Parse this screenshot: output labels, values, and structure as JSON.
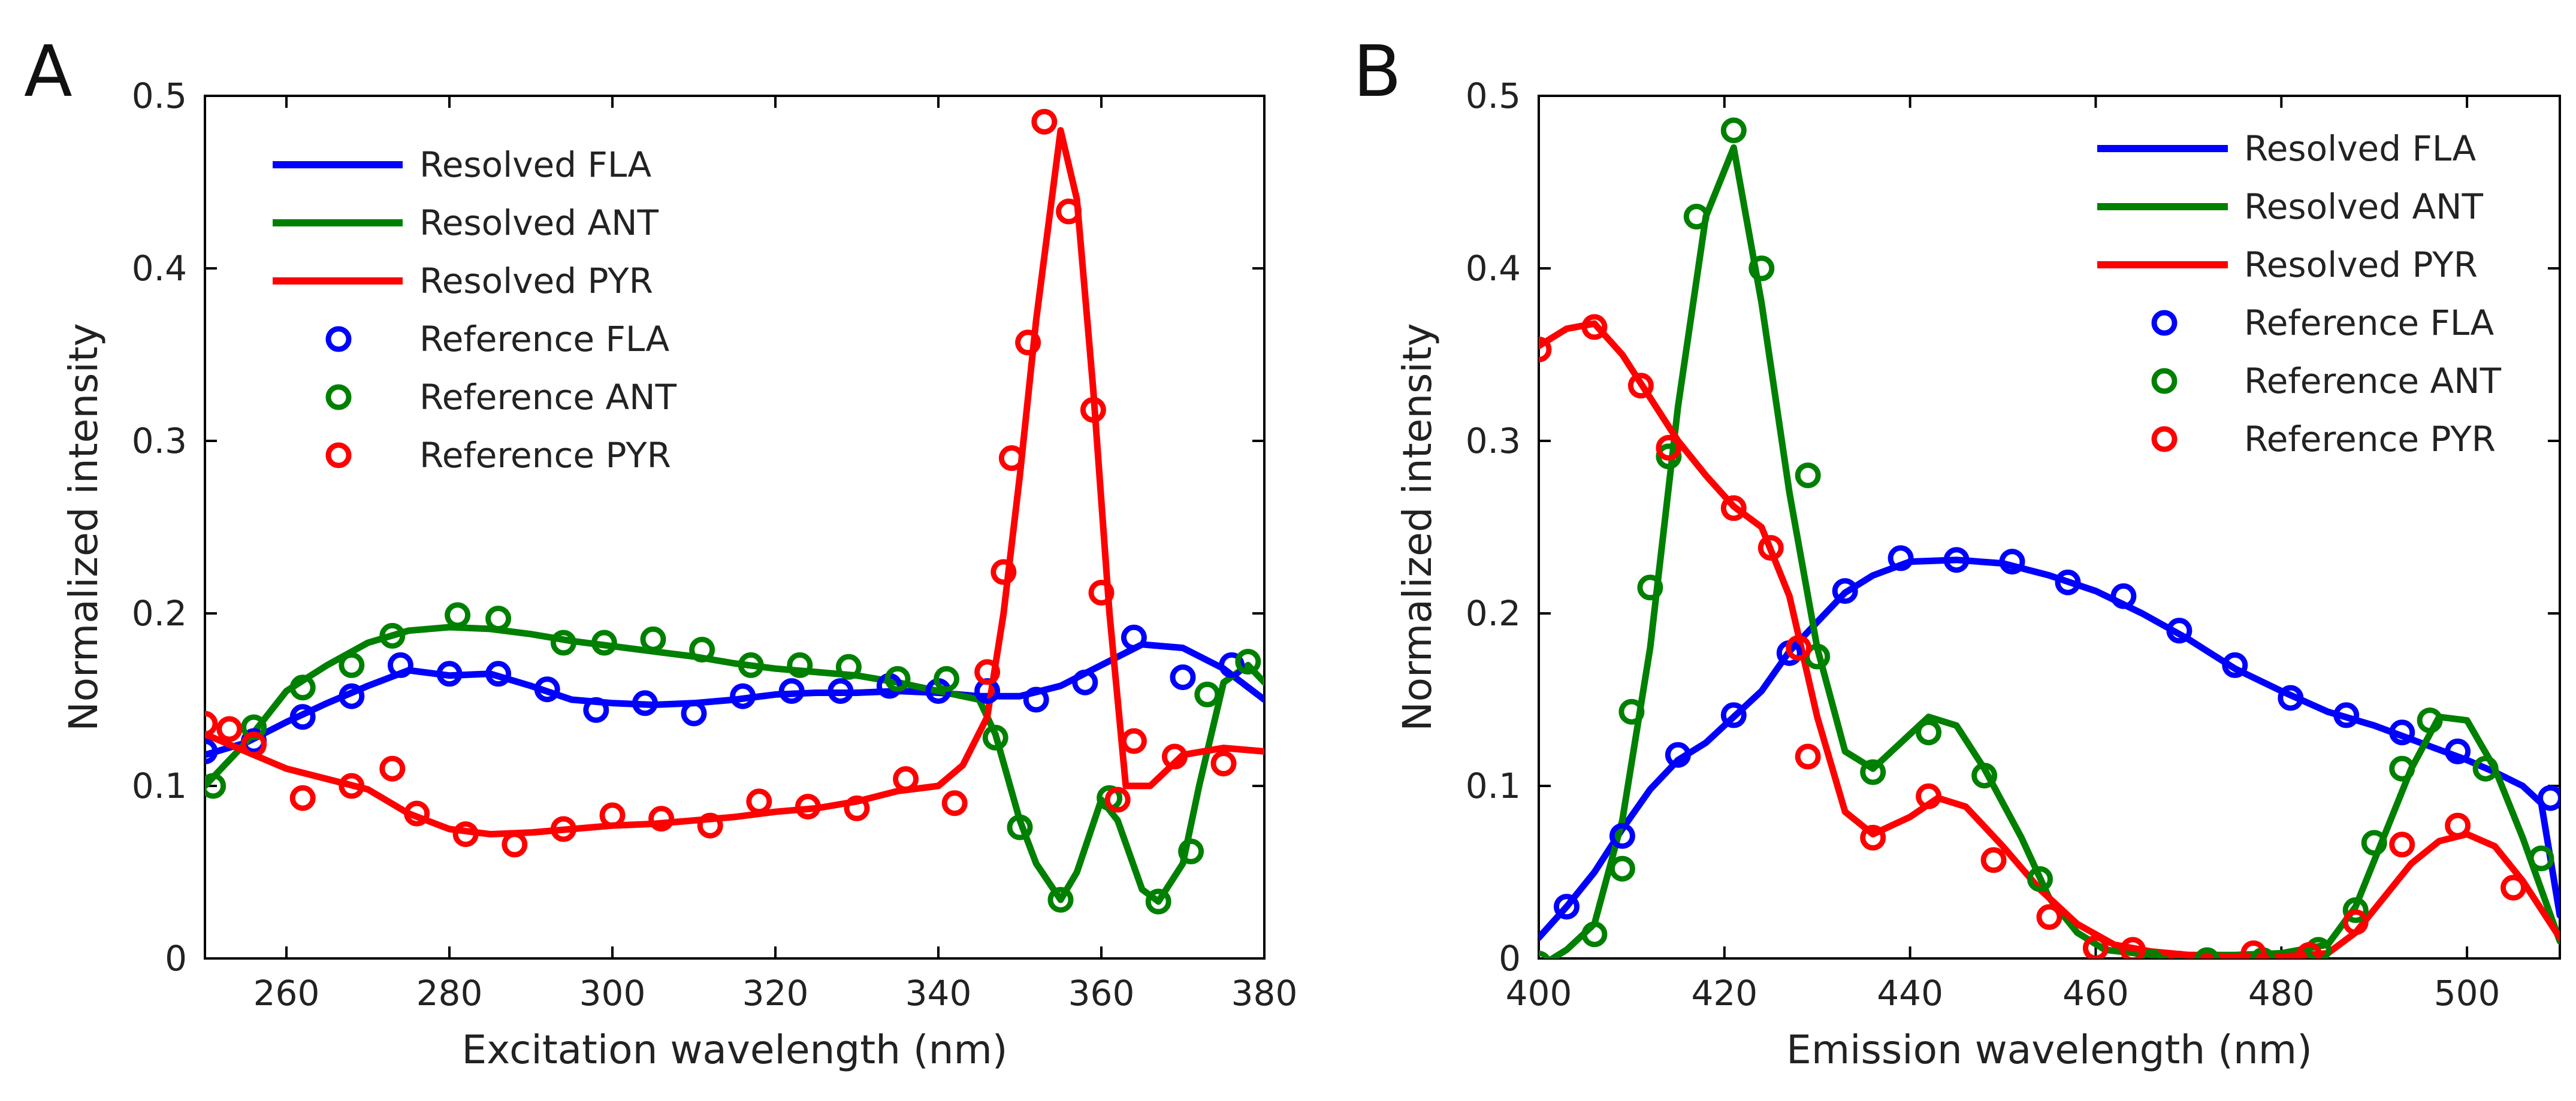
{
  "chart_data": [
    {
      "panel": "A",
      "type": "line",
      "xlabel": "Excitation wavelength (nm)",
      "ylabel": "Normalized intensity",
      "xlim": [
        250,
        380
      ],
      "ylim": [
        0,
        0.5
      ],
      "xticks": [
        260,
        280,
        300,
        320,
        340,
        360,
        380
      ],
      "yticks": [
        0,
        0.1,
        0.2,
        0.3,
        0.4,
        0.5
      ],
      "xtick_labels": [
        "260",
        "280",
        "300",
        "320",
        "340",
        "360",
        "380"
      ],
      "ytick_labels": [
        "0",
        "0.1",
        "0.2",
        "0.3",
        "0.4",
        "0.5"
      ],
      "legend_position": "top-left",
      "series": [
        {
          "name": "Resolved FLA",
          "kind": "line",
          "color": "#0000ff",
          "x": [
            250,
            255,
            260,
            265,
            270,
            275,
            280,
            285,
            290,
            295,
            300,
            305,
            310,
            315,
            320,
            325,
            330,
            335,
            340,
            345,
            350,
            355,
            360,
            365,
            370,
            375,
            380
          ],
          "y": [
            0.118,
            0.125,
            0.137,
            0.148,
            0.158,
            0.167,
            0.164,
            0.165,
            0.158,
            0.15,
            0.148,
            0.147,
            0.148,
            0.15,
            0.153,
            0.154,
            0.154,
            0.155,
            0.154,
            0.152,
            0.152,
            0.158,
            0.17,
            0.182,
            0.18,
            0.168,
            0.15
          ]
        },
        {
          "name": "Resolved ANT",
          "kind": "line",
          "color": "#008000",
          "x": [
            250,
            255,
            260,
            265,
            270,
            275,
            280,
            285,
            290,
            295,
            300,
            305,
            310,
            315,
            320,
            325,
            330,
            335,
            340,
            345,
            347,
            350,
            352,
            355,
            357,
            360,
            362,
            365,
            367,
            370,
            372,
            375,
            378,
            380
          ],
          "y": [
            0.1,
            0.125,
            0.155,
            0.17,
            0.183,
            0.19,
            0.192,
            0.191,
            0.188,
            0.184,
            0.181,
            0.178,
            0.175,
            0.171,
            0.168,
            0.166,
            0.164,
            0.16,
            0.155,
            0.15,
            0.13,
            0.08,
            0.055,
            0.034,
            0.05,
            0.092,
            0.08,
            0.04,
            0.033,
            0.055,
            0.1,
            0.16,
            0.17,
            0.16
          ]
        },
        {
          "name": "Resolved PYR",
          "kind": "line",
          "color": "#ff0000",
          "x": [
            250,
            255,
            260,
            265,
            270,
            275,
            280,
            285,
            290,
            295,
            300,
            305,
            310,
            315,
            320,
            325,
            330,
            335,
            340,
            343,
            346,
            348,
            350,
            352,
            355,
            357,
            359,
            361,
            363,
            366,
            370,
            375,
            380
          ],
          "y": [
            0.13,
            0.12,
            0.11,
            0.104,
            0.098,
            0.084,
            0.075,
            0.072,
            0.073,
            0.075,
            0.077,
            0.078,
            0.08,
            0.082,
            0.085,
            0.087,
            0.091,
            0.097,
            0.1,
            0.112,
            0.14,
            0.2,
            0.28,
            0.37,
            0.48,
            0.44,
            0.33,
            0.2,
            0.1,
            0.1,
            0.118,
            0.122,
            0.12
          ]
        },
        {
          "name": "Reference FLA",
          "kind": "marker",
          "color": "#0000ff",
          "x": [
            250,
            256,
            262,
            268,
            274,
            280,
            286,
            292,
            298,
            304,
            310,
            316,
            322,
            328,
            334,
            340,
            346,
            352,
            358,
            364,
            370,
            376
          ],
          "y": [
            0.12,
            0.126,
            0.14,
            0.152,
            0.17,
            0.165,
            0.165,
            0.156,
            0.144,
            0.148,
            0.142,
            0.152,
            0.155,
            0.155,
            0.158,
            0.155,
            0.155,
            0.15,
            0.16,
            0.186,
            0.163,
            0.17
          ]
        },
        {
          "name": "Reference ANT",
          "kind": "marker",
          "color": "#008000",
          "x": [
            251,
            256,
            262,
            268,
            273,
            281,
            286,
            294,
            299,
            305,
            311,
            317,
            323,
            329,
            335,
            341,
            347,
            350,
            355,
            361,
            367,
            371,
            373,
            378
          ],
          "y": [
            0.1,
            0.134,
            0.157,
            0.17,
            0.187,
            0.199,
            0.197,
            0.183,
            0.183,
            0.185,
            0.179,
            0.17,
            0.17,
            0.169,
            0.162,
            0.162,
            0.128,
            0.076,
            0.034,
            0.093,
            0.033,
            0.062,
            0.153,
            0.172
          ]
        },
        {
          "name": "Reference PYR",
          "kind": "marker",
          "color": "#ff0000",
          "x": [
            250,
            253,
            256,
            262,
            268,
            273,
            276,
            282,
            288,
            294,
            300,
            306,
            312,
            318,
            324,
            330,
            336,
            342,
            346,
            348,
            349,
            351,
            353,
            356,
            359,
            360,
            362,
            364,
            369,
            375
          ],
          "y": [
            0.136,
            0.133,
            0.124,
            0.093,
            0.1,
            0.11,
            0.084,
            0.072,
            0.066,
            0.075,
            0.083,
            0.081,
            0.077,
            0.091,
            0.088,
            0.087,
            0.104,
            0.09,
            0.166,
            0.224,
            0.29,
            0.357,
            0.485,
            0.433,
            0.318,
            0.212,
            0.092,
            0.126,
            0.117,
            0.113
          ]
        }
      ]
    },
    {
      "panel": "B",
      "type": "line",
      "xlabel": "Emission wavelength (nm)",
      "ylabel": "Normalized intensity",
      "xlim": [
        400,
        510
      ],
      "ylim": [
        0,
        0.5
      ],
      "xticks": [
        400,
        420,
        440,
        460,
        480,
        500
      ],
      "yticks": [
        0,
        0.1,
        0.2,
        0.3,
        0.4,
        0.5
      ],
      "xtick_labels": [
        "400",
        "420",
        "440",
        "460",
        "480",
        "500"
      ],
      "ytick_labels": [
        "0",
        "0.1",
        "0.2",
        "0.3",
        "0.4",
        "0.5"
      ],
      "legend_position": "top-right",
      "series": [
        {
          "name": "Resolved FLA",
          "kind": "line",
          "color": "#0000ff",
          "x": [
            400,
            403,
            406,
            409,
            412,
            415,
            418,
            421,
            424,
            427,
            430,
            433,
            436,
            440,
            445,
            450,
            455,
            460,
            465,
            470,
            475,
            480,
            485,
            490,
            495,
            500,
            503,
            506,
            508,
            510
          ],
          "y": [
            0.012,
            0.03,
            0.05,
            0.075,
            0.098,
            0.115,
            0.125,
            0.14,
            0.155,
            0.178,
            0.195,
            0.212,
            0.222,
            0.23,
            0.231,
            0.229,
            0.222,
            0.213,
            0.2,
            0.185,
            0.168,
            0.155,
            0.143,
            0.135,
            0.125,
            0.115,
            0.108,
            0.1,
            0.09,
            0.025
          ]
        },
        {
          "name": "Resolved ANT",
          "kind": "line",
          "color": "#008000",
          "x": [
            400,
            403,
            406,
            409,
            412,
            415,
            418,
            421,
            424,
            427,
            430,
            433,
            436,
            439,
            442,
            445,
            448,
            452,
            455,
            458,
            461,
            466,
            470,
            475,
            480,
            485,
            488,
            491,
            494,
            497,
            500,
            503,
            506,
            510
          ],
          "y": [
            -0.005,
            0.005,
            0.02,
            0.08,
            0.18,
            0.32,
            0.43,
            0.47,
            0.38,
            0.27,
            0.18,
            0.12,
            0.11,
            0.125,
            0.14,
            0.135,
            0.11,
            0.07,
            0.035,
            0.015,
            0.005,
            0.002,
            0.002,
            0.002,
            0.003,
            0.008,
            0.03,
            0.07,
            0.11,
            0.14,
            0.138,
            0.11,
            0.07,
            0.01
          ]
        },
        {
          "name": "Resolved PYR",
          "kind": "line",
          "color": "#ff0000",
          "x": [
            400,
            403,
            406,
            409,
            412,
            415,
            418,
            421,
            424,
            427,
            430,
            433,
            436,
            440,
            443,
            446,
            450,
            454,
            458,
            462,
            466,
            470,
            475,
            480,
            485,
            488,
            491,
            494,
            497,
            500,
            503,
            506,
            510
          ],
          "y": [
            0.355,
            0.365,
            0.368,
            0.35,
            0.325,
            0.3,
            0.28,
            0.262,
            0.25,
            0.21,
            0.14,
            0.085,
            0.072,
            0.082,
            0.093,
            0.088,
            0.065,
            0.04,
            0.02,
            0.008,
            0.004,
            0.002,
            0.001,
            0.001,
            0.003,
            0.015,
            0.035,
            0.055,
            0.068,
            0.072,
            0.065,
            0.045,
            0.012
          ]
        },
        {
          "name": "Reference FLA",
          "kind": "marker",
          "color": "#0000ff",
          "x": [
            403,
            409,
            415,
            421,
            427,
            433,
            439,
            445,
            451,
            457,
            463,
            469,
            475,
            481,
            487,
            493,
            499,
            509
          ],
          "y": [
            0.03,
            0.071,
            0.118,
            0.141,
            0.177,
            0.213,
            0.232,
            0.231,
            0.23,
            0.218,
            0.21,
            0.19,
            0.17,
            0.151,
            0.141,
            0.131,
            0.12,
            0.093
          ]
        },
        {
          "name": "Reference ANT",
          "kind": "marker",
          "color": "#008000",
          "x": [
            400,
            406,
            409,
            410,
            412,
            414,
            417,
            421,
            424,
            429,
            430,
            436,
            442,
            448,
            454,
            460,
            466,
            472,
            478,
            484,
            488,
            490,
            493,
            496,
            502,
            508
          ],
          "y": [
            -0.003,
            0.014,
            0.052,
            0.143,
            0.215,
            0.291,
            0.43,
            0.48,
            0.4,
            0.28,
            0.175,
            0.108,
            0.131,
            0.106,
            0.046,
            0.006,
            -0.002,
            -0.001,
            -0.001,
            0.005,
            0.028,
            0.067,
            0.11,
            0.138,
            0.11,
            0.058
          ]
        },
        {
          "name": "Reference PYR",
          "kind": "marker",
          "color": "#ff0000",
          "x": [
            400,
            406,
            411,
            414,
            421,
            425,
            428,
            429,
            436,
            442,
            449,
            455,
            460,
            464,
            469,
            477,
            483,
            488,
            493,
            499,
            505
          ],
          "y": [
            0.353,
            0.366,
            0.332,
            0.296,
            0.261,
            0.238,
            0.18,
            0.117,
            0.07,
            0.094,
            0.057,
            0.024,
            0.006,
            0.005,
            -0.003,
            0.003,
            0.002,
            0.021,
            0.066,
            0.077,
            0.041
          ]
        }
      ]
    }
  ]
}
